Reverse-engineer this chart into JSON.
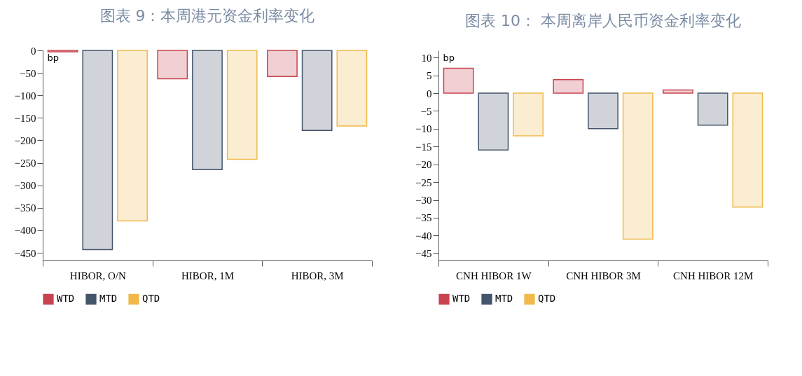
{
  "chart_data": [
    {
      "type": "bar",
      "title": "图表 9：本周港元资金利率变化",
      "ylabel": "bp",
      "categories": [
        "HIBOR, O/N",
        "HIBOR, 1M",
        "HIBOR, 3M"
      ],
      "ylim": [
        -467,
        0
      ],
      "yticks": [
        -450,
        -400,
        -350,
        -300,
        -250,
        -200,
        -150,
        -100,
        -50,
        0
      ],
      "legend": "bottom",
      "grid": false,
      "series": [
        {
          "name": "WTD",
          "color": "#c8434f",
          "values": [
            -3,
            -63,
            -58
          ]
        },
        {
          "name": "MTD",
          "color": "#44546a",
          "values": [
            -443,
            -265,
            -178
          ]
        },
        {
          "name": "QTD",
          "color": "#f0b94a",
          "values": [
            -379,
            -242,
            -168
          ]
        }
      ]
    },
    {
      "type": "bar",
      "title": "图表 10： 本周离岸人民币资金利率变化",
      "ylabel": "bp",
      "categories": [
        "CNH HIBOR 1W",
        "CNH HIBOR 3M",
        "CNH HIBOR 12M"
      ],
      "ylim": [
        -47,
        12
      ],
      "yticks": [
        -45,
        -40,
        -35,
        -30,
        -25,
        -20,
        -15,
        -10,
        -5,
        0,
        5,
        10
      ],
      "legend": "bottom",
      "grid": false,
      "series": [
        {
          "name": "WTD",
          "color": "#c8434f",
          "values": [
            7,
            3.8,
            0.9
          ]
        },
        {
          "name": "MTD",
          "color": "#44546a",
          "values": [
            -16,
            -10,
            -9
          ]
        },
        {
          "name": "QTD",
          "color": "#f0b94a",
          "values": [
            -12,
            -41,
            -32
          ]
        }
      ]
    }
  ]
}
